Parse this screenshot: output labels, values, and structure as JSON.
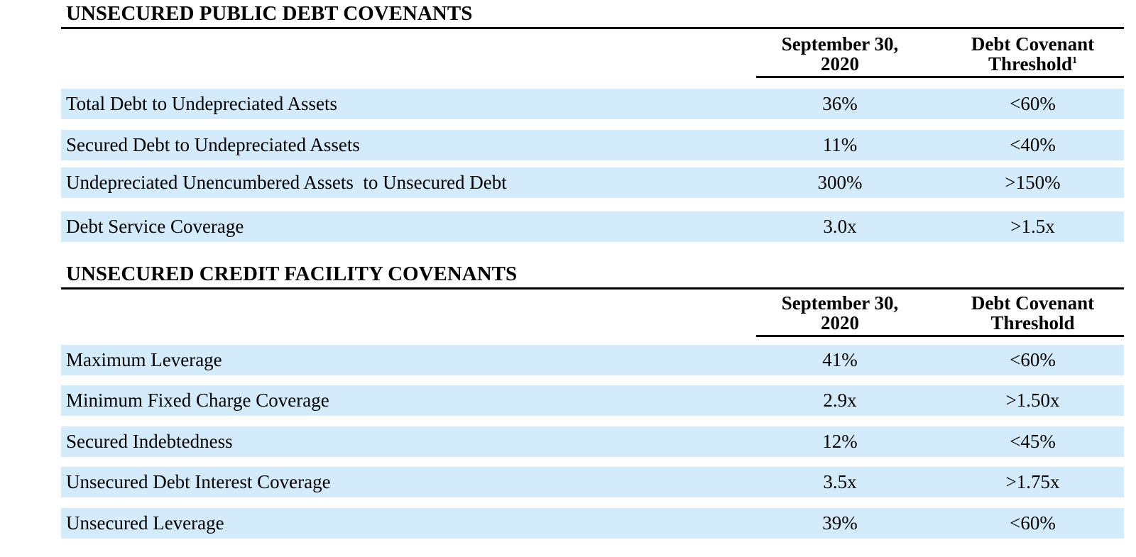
{
  "public_debt": {
    "title": "UNSECURED PUBLIC DEBT COVENANTS",
    "col1_line1": "September 30,",
    "col1_line2": "2020",
    "col2_line1": "Debt Covenant",
    "col2_line2": "Threshold",
    "col2_footnote": "1",
    "rows": [
      {
        "label": "Total Debt to Undepreciated Assets",
        "value": "36%",
        "threshold": "<60%"
      },
      {
        "label": "Secured Debt to Undepreciated Assets",
        "value": "11%",
        "threshold": "<40%"
      },
      {
        "label": "Undepreciated Unencumbered Assets  to Unsecured Debt",
        "value": "300%",
        "threshold": ">150%"
      },
      {
        "label": "Debt Service Coverage",
        "value": "3.0x",
        "threshold": ">1.5x"
      }
    ]
  },
  "credit_facility": {
    "title": "UNSECURED CREDIT FACILITY COVENANTS",
    "col1_line1": "September 30,",
    "col1_line2": "2020",
    "col2_line1": "Debt Covenant",
    "col2_line2": "Threshold",
    "rows": [
      {
        "label": "Maximum Leverage",
        "value": "41%",
        "threshold": "<60%"
      },
      {
        "label": "Minimum Fixed Charge Coverage",
        "value": "2.9x",
        "threshold": ">1.50x"
      },
      {
        "label": "Secured Indebtedness",
        "value": "12%",
        "threshold": "<45%"
      },
      {
        "label": "Unsecured Debt Interest Coverage",
        "value": "3.5x",
        "threshold": ">1.75x"
      },
      {
        "label": "Unsecured Leverage",
        "value": "39%",
        "threshold": "<60%"
      }
    ]
  },
  "colors": {
    "row_background": "#d3ebfa",
    "rule": "#000000"
  }
}
